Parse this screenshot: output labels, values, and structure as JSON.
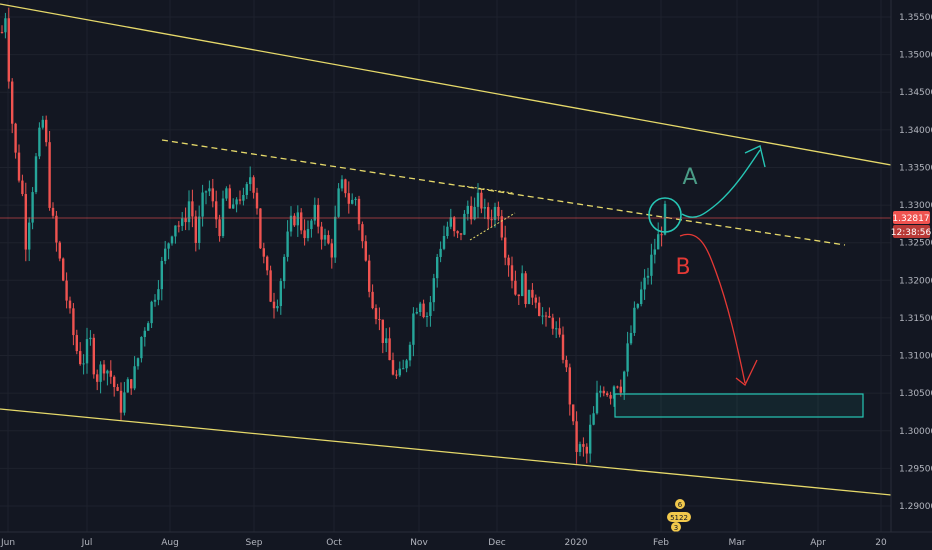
{
  "chart_data": {
    "type": "candlestick",
    "title": "",
    "y_axis": {
      "ticks": [
        "1.35500",
        "1.35000",
        "1.34500",
        "1.34000",
        "1.33500",
        "1.33000",
        "1.32500",
        "1.32000",
        "1.31500",
        "1.31000",
        "1.30500",
        "1.30000",
        "1.29500",
        "1.29000"
      ],
      "tick_values": [
        1.355,
        1.35,
        1.345,
        1.34,
        1.335,
        1.33,
        1.325,
        1.32,
        1.315,
        1.31,
        1.305,
        1.3,
        1.295,
        1.29
      ],
      "range": [
        1.2885,
        1.3575
      ]
    },
    "x_axis": {
      "labels": [
        "Jun",
        "Jul",
        "Aug",
        "Sep",
        "Oct",
        "Nov",
        "Dec",
        "2020",
        "Feb",
        "Mar",
        "Apr",
        "20"
      ]
    },
    "current_price": "1.32817",
    "countdown": "12:38:56",
    "annotations": {
      "label_a": "A",
      "label_b": "B",
      "badge_top": "6",
      "badge_mid": "5122",
      "badge_bottom": "3"
    },
    "colors": {
      "up": "#26a69a",
      "down": "#ef5350",
      "trendline": "#e6d96a",
      "price_line": "#ef5350",
      "cyan": "#26c6b5",
      "red_path": "#e53935",
      "teal_text": "#4a9b86",
      "badge": "#f2c94c"
    }
  }
}
